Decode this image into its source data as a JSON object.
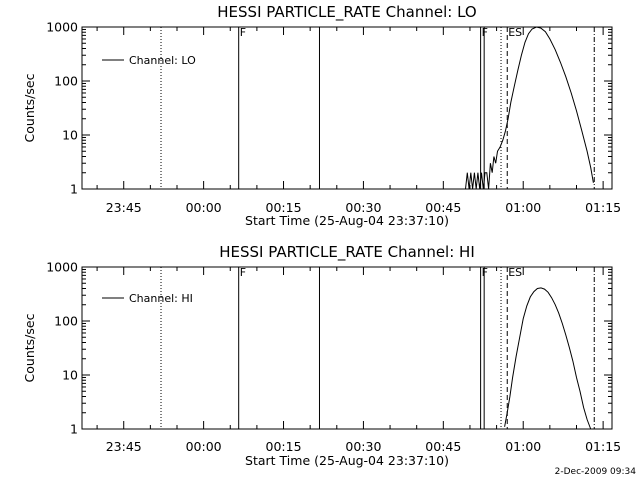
{
  "footer": {
    "timestamp": "2-Dec-2009 09:34"
  },
  "chart_data": [
    {
      "type": "line",
      "title": "HESSI PARTICLE_RATE Channel: LO",
      "xlabel": "Start Time (25-Aug-04 23:37:10)",
      "ylabel": "Counts/sec",
      "yscale": "log",
      "ylim": [
        1,
        1000
      ],
      "xlim": [
        "23:37:10",
        "01:16:40"
      ],
      "x_tick_labels": [
        "23:45",
        "00:00",
        "00:15",
        "00:30",
        "00:45",
        "01:00",
        "01:15"
      ],
      "y_tick_labels": [
        "1",
        "10",
        "100",
        "1000"
      ],
      "legend": {
        "label": "Channel: LO",
        "position": "top-left"
      },
      "grid": false,
      "markers": [
        {
          "time": "23:52:00",
          "style": "dotted",
          "label": ""
        },
        {
          "time": "00:06:35",
          "style": "solid",
          "label": "F"
        },
        {
          "time": "00:21:45",
          "style": "solid",
          "label": ""
        },
        {
          "time": "00:52:00",
          "style": "solid",
          "label": "F"
        },
        {
          "time": "00:52:40",
          "style": "solid",
          "label": ""
        },
        {
          "time": "00:55:50",
          "style": "dotted",
          "label": ""
        },
        {
          "time": "00:57:00",
          "style": "dashed",
          "label": "ES"
        },
        {
          "time": "01:13:20",
          "style": "dashdot",
          "label": ""
        }
      ],
      "series": [
        {
          "name": "Channel: LO",
          "x": [
            "00:49:10",
            "00:49:30",
            "00:49:50",
            "00:50:10",
            "00:50:30",
            "00:50:50",
            "00:51:10",
            "00:51:30",
            "00:51:50",
            "00:52:10",
            "00:52:30",
            "00:52:50",
            "00:53:10",
            "00:53:30",
            "00:53:50",
            "00:54:10",
            "00:54:30",
            "00:54:50",
            "00:55:10",
            "00:55:40",
            "00:56:10",
            "00:56:40",
            "00:57:10",
            "00:57:40",
            "00:58:20",
            "00:59:00",
            "00:59:40",
            "01:00:20",
            "01:01:00",
            "01:01:40",
            "01:02:30",
            "01:03:20",
            "01:04:10",
            "01:05:00",
            "01:06:00",
            "01:07:00",
            "01:08:00",
            "01:09:00",
            "01:10:00",
            "01:11:00",
            "01:12:00",
            "01:12:40",
            "01:13:10"
          ],
          "y": [
            1,
            2,
            1,
            2,
            1,
            2,
            1,
            2,
            1,
            2,
            1,
            2,
            2,
            1,
            3,
            2,
            4,
            3,
            5,
            6,
            8,
            12,
            20,
            40,
            80,
            160,
            300,
            520,
            750,
            920,
            1000,
            950,
            820,
            600,
            380,
            220,
            120,
            60,
            28,
            12,
            5,
            2.5,
            1.3
          ]
        }
      ]
    },
    {
      "type": "line",
      "title": "HESSI PARTICLE_RATE Channel: HI",
      "xlabel": "Start Time (25-Aug-04 23:37:10)",
      "ylabel": "Counts/sec",
      "yscale": "log",
      "ylim": [
        1,
        1000
      ],
      "xlim": [
        "23:37:10",
        "01:16:40"
      ],
      "x_tick_labels": [
        "23:45",
        "00:00",
        "00:15",
        "00:30",
        "00:45",
        "01:00",
        "01:15"
      ],
      "y_tick_labels": [
        "1",
        "10",
        "100",
        "1000"
      ],
      "legend": {
        "label": "Channel: HI",
        "position": "top-left"
      },
      "grid": false,
      "markers": [
        {
          "time": "23:52:00",
          "style": "dotted",
          "label": ""
        },
        {
          "time": "00:06:35",
          "style": "solid",
          "label": "F"
        },
        {
          "time": "00:21:45",
          "style": "solid",
          "label": ""
        },
        {
          "time": "00:52:00",
          "style": "solid",
          "label": "F"
        },
        {
          "time": "00:52:40",
          "style": "solid",
          "label": ""
        },
        {
          "time": "00:55:50",
          "style": "dotted",
          "label": ""
        },
        {
          "time": "00:57:00",
          "style": "dashed",
          "label": "ES"
        },
        {
          "time": "01:13:20",
          "style": "dashdot",
          "label": ""
        }
      ],
      "series": [
        {
          "name": "Channel: HI",
          "x": [
            "00:56:30",
            "00:57:00",
            "00:57:30",
            "00:58:00",
            "00:58:40",
            "00:59:20",
            "01:00:00",
            "01:00:40",
            "01:01:20",
            "01:02:00",
            "01:02:40",
            "01:03:20",
            "01:04:00",
            "01:04:40",
            "01:05:20",
            "01:06:00",
            "01:06:40",
            "01:07:20",
            "01:08:00",
            "01:08:40",
            "01:09:20",
            "01:10:00",
            "01:10:40",
            "01:11:20",
            "01:12:00",
            "01:12:40"
          ],
          "y": [
            1.1,
            2,
            4,
            9,
            22,
            50,
            110,
            190,
            280,
            350,
            400,
            410,
            390,
            340,
            270,
            200,
            140,
            90,
            55,
            32,
            18,
            9,
            5,
            2.5,
            1.5,
            1
          ]
        }
      ]
    }
  ]
}
